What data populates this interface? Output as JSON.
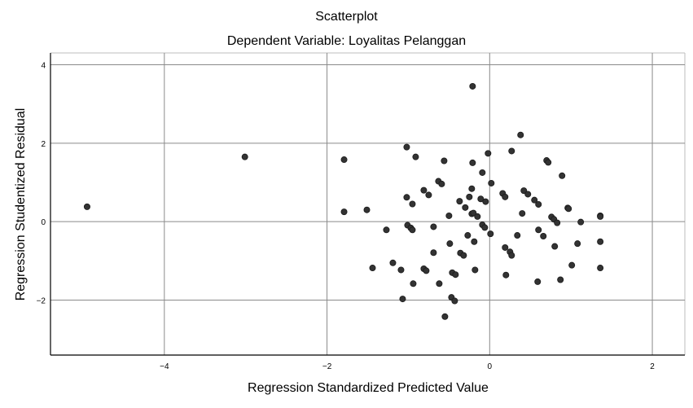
{
  "chart_data": {
    "type": "scatter",
    "title": "Scatterplot",
    "subtitle": "Dependent Variable: Loyalitas Pelanggan",
    "xlabel": "Regression Standardized Predicted Value",
    "ylabel": "Regression Studentized Residual",
    "xlim": [
      -5.4,
      2.4
    ],
    "ylim": [
      -3.4,
      4.3
    ],
    "xticks": [
      -4,
      -2,
      0,
      2
    ],
    "yticks": [
      -2,
      0,
      2,
      4
    ],
    "grid": true,
    "marker_color": "#333333",
    "points": [
      {
        "x": -4.95,
        "y": 0.38
      },
      {
        "x": -3.01,
        "y": 1.65
      },
      {
        "x": -1.79,
        "y": 1.58
      },
      {
        "x": -1.79,
        "y": 0.25
      },
      {
        "x": -1.51,
        "y": 0.3
      },
      {
        "x": -1.44,
        "y": -1.18
      },
      {
        "x": -1.27,
        "y": -0.21
      },
      {
        "x": -1.19,
        "y": -1.05
      },
      {
        "x": -1.09,
        "y": -1.23
      },
      {
        "x": -1.07,
        "y": -1.97
      },
      {
        "x": -1.02,
        "y": 1.9
      },
      {
        "x": -1.02,
        "y": 0.62
      },
      {
        "x": -1.01,
        "y": -0.09
      },
      {
        "x": -0.97,
        "y": -0.16
      },
      {
        "x": -0.95,
        "y": -0.21
      },
      {
        "x": -0.95,
        "y": 0.45
      },
      {
        "x": -0.94,
        "y": -1.58
      },
      {
        "x": -0.91,
        "y": 1.65
      },
      {
        "x": -0.81,
        "y": 0.8
      },
      {
        "x": -0.81,
        "y": -1.2
      },
      {
        "x": -0.78,
        "y": -1.25
      },
      {
        "x": -0.75,
        "y": 0.68
      },
      {
        "x": -0.69,
        "y": -0.79
      },
      {
        "x": -0.69,
        "y": -0.13
      },
      {
        "x": -0.63,
        "y": 1.03
      },
      {
        "x": -0.62,
        "y": -1.58
      },
      {
        "x": -0.59,
        "y": 0.96
      },
      {
        "x": -0.56,
        "y": 1.55
      },
      {
        "x": -0.55,
        "y": -2.42
      },
      {
        "x": -0.5,
        "y": 0.15
      },
      {
        "x": -0.49,
        "y": -0.56
      },
      {
        "x": -0.47,
        "y": -1.93
      },
      {
        "x": -0.46,
        "y": -1.3
      },
      {
        "x": -0.43,
        "y": -2.02
      },
      {
        "x": -0.42,
        "y": -1.35
      },
      {
        "x": -0.37,
        "y": 0.52
      },
      {
        "x": -0.36,
        "y": -0.8
      },
      {
        "x": -0.32,
        "y": -0.86
      },
      {
        "x": -0.3,
        "y": 0.36
      },
      {
        "x": -0.27,
        "y": -0.35
      },
      {
        "x": -0.25,
        "y": 0.63
      },
      {
        "x": -0.22,
        "y": 0.2
      },
      {
        "x": -0.22,
        "y": 0.84
      },
      {
        "x": -0.21,
        "y": 1.5
      },
      {
        "x": -0.21,
        "y": 3.45
      },
      {
        "x": -0.2,
        "y": 0.22
      },
      {
        "x": -0.19,
        "y": -0.51
      },
      {
        "x": -0.18,
        "y": -1.23
      },
      {
        "x": -0.15,
        "y": 0.13
      },
      {
        "x": -0.11,
        "y": 0.58
      },
      {
        "x": -0.09,
        "y": -0.08
      },
      {
        "x": -0.09,
        "y": 1.25
      },
      {
        "x": -0.06,
        "y": -0.15
      },
      {
        "x": -0.05,
        "y": 0.51
      },
      {
        "x": -0.02,
        "y": 1.74
      },
      {
        "x": 0.01,
        "y": -0.31
      },
      {
        "x": 0.02,
        "y": 0.98
      },
      {
        "x": 0.16,
        "y": 0.72
      },
      {
        "x": 0.19,
        "y": 0.63
      },
      {
        "x": 0.19,
        "y": -0.66
      },
      {
        "x": 0.2,
        "y": -1.36
      },
      {
        "x": 0.25,
        "y": -0.77
      },
      {
        "x": 0.27,
        "y": -0.86
      },
      {
        "x": 0.27,
        "y": 1.8
      },
      {
        "x": 0.34,
        "y": -0.35
      },
      {
        "x": 0.38,
        "y": 2.21
      },
      {
        "x": 0.4,
        "y": 0.21
      },
      {
        "x": 0.42,
        "y": 0.79
      },
      {
        "x": 0.47,
        "y": 0.7
      },
      {
        "x": 0.55,
        "y": 0.55
      },
      {
        "x": 0.59,
        "y": -1.53
      },
      {
        "x": 0.6,
        "y": 0.44
      },
      {
        "x": 0.6,
        "y": -0.21
      },
      {
        "x": 0.66,
        "y": -0.37
      },
      {
        "x": 0.7,
        "y": 1.56
      },
      {
        "x": 0.72,
        "y": 1.51
      },
      {
        "x": 0.76,
        "y": 0.12
      },
      {
        "x": 0.79,
        "y": 0.06
      },
      {
        "x": 0.8,
        "y": -0.63
      },
      {
        "x": 0.83,
        "y": -0.03
      },
      {
        "x": 0.87,
        "y": -1.48
      },
      {
        "x": 0.89,
        "y": 1.17
      },
      {
        "x": 0.96,
        "y": 0.35
      },
      {
        "x": 0.97,
        "y": 0.33
      },
      {
        "x": 1.01,
        "y": -1.11
      },
      {
        "x": 1.08,
        "y": -0.56
      },
      {
        "x": 1.12,
        "y": -0.01
      },
      {
        "x": 1.36,
        "y": 0.15
      },
      {
        "x": 1.36,
        "y": 0.13
      },
      {
        "x": 1.36,
        "y": -0.51
      },
      {
        "x": 1.36,
        "y": -1.18
      }
    ]
  }
}
